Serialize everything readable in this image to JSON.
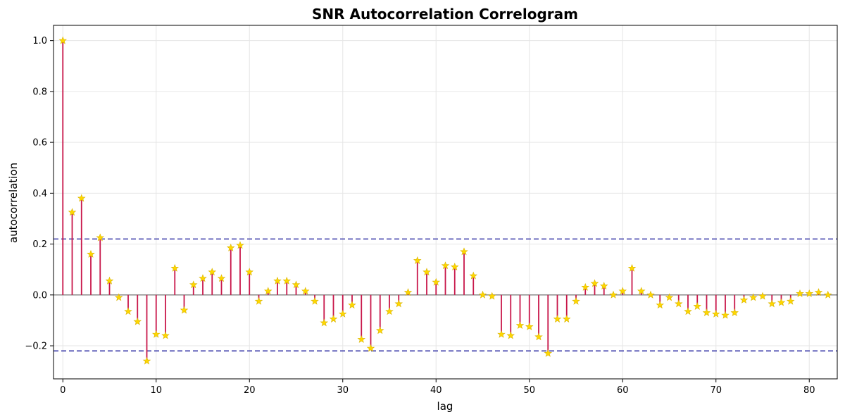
{
  "chart_data": {
    "type": "stem",
    "title": "SNR Autocorrelation Correlogram",
    "xlabel": "lag",
    "ylabel": "autocorrelation",
    "xlim": [
      -1,
      83
    ],
    "ylim": [
      -0.33,
      1.06
    ],
    "grid": true,
    "x_ticks": [
      0,
      10,
      20,
      30,
      40,
      50,
      60,
      70,
      80
    ],
    "y_ticks": [
      -0.2,
      0.0,
      0.2,
      0.4,
      0.6,
      0.8,
      1.0
    ],
    "y_tick_labels": [
      "−0.2",
      "0.0",
      "0.2",
      "0.4",
      "0.6",
      "0.8",
      "1.0"
    ],
    "confidence_bounds": [
      0.22,
      -0.22
    ],
    "colors": {
      "stem": "#c8174a",
      "marker": "#ffd700",
      "marker_edge": "#d8b400",
      "confidence": "#3a3aa8",
      "baseline": "#808080",
      "grid": "#e6e6e6"
    },
    "lags": [
      0,
      1,
      2,
      3,
      4,
      5,
      6,
      7,
      8,
      9,
      10,
      11,
      12,
      13,
      14,
      15,
      16,
      17,
      18,
      19,
      20,
      21,
      22,
      23,
      24,
      25,
      26,
      27,
      28,
      29,
      30,
      31,
      32,
      33,
      34,
      35,
      36,
      37,
      38,
      39,
      40,
      41,
      42,
      43,
      44,
      45,
      46,
      47,
      48,
      49,
      50,
      51,
      52,
      53,
      54,
      55,
      56,
      57,
      58,
      59,
      60,
      61,
      62,
      63,
      64,
      65,
      66,
      67,
      68,
      69,
      70,
      71,
      72,
      73,
      74,
      75,
      76,
      77,
      78,
      79,
      80,
      81,
      82
    ],
    "values": [
      1.0,
      0.325,
      0.38,
      0.16,
      0.225,
      0.055,
      -0.01,
      -0.065,
      -0.105,
      -0.26,
      -0.155,
      -0.16,
      0.105,
      -0.06,
      0.04,
      0.065,
      0.09,
      0.065,
      0.185,
      0.195,
      0.09,
      -0.025,
      0.015,
      0.055,
      0.055,
      0.04,
      0.015,
      -0.025,
      -0.11,
      -0.095,
      -0.075,
      -0.04,
      -0.175,
      -0.21,
      -0.14,
      -0.065,
      -0.035,
      0.01,
      0.135,
      0.09,
      0.05,
      0.115,
      0.11,
      0.17,
      0.075,
      0.0,
      -0.005,
      -0.155,
      -0.16,
      -0.12,
      -0.125,
      -0.165,
      -0.23,
      -0.095,
      -0.095,
      -0.025,
      0.03,
      0.045,
      0.035,
      0.0,
      0.015,
      0.105,
      0.015,
      0.0,
      -0.04,
      -0.01,
      -0.035,
      -0.065,
      -0.045,
      -0.07,
      -0.075,
      -0.08,
      -0.07,
      -0.02,
      -0.01,
      -0.005,
      -0.035,
      -0.03,
      -0.025,
      0.005,
      0.005,
      0.01,
      0.0
    ]
  }
}
